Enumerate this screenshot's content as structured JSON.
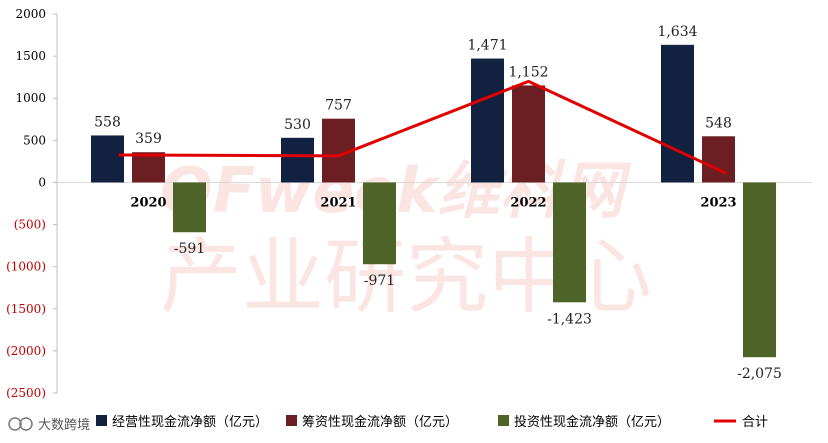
{
  "chart_data": {
    "type": "bar",
    "categories": [
      "2020",
      "2021",
      "2022",
      "2023"
    ],
    "series": [
      {
        "name": "经营性现金流净额（亿元）",
        "color": "#12213f",
        "values": [
          558,
          530,
          1471,
          1634
        ],
        "labels": [
          "558",
          "530",
          "1,471",
          "1,634"
        ]
      },
      {
        "name": "筹资性现金流净额（亿元）",
        "color": "#6b1f22",
        "values": [
          359,
          757,
          1152,
          548
        ],
        "labels": [
          "359",
          "757",
          "1,152",
          "548"
        ]
      },
      {
        "name": "投资性现金流净额（亿元）",
        "color": "#4e6328",
        "values": [
          -591,
          -971,
          -1423,
          -2075
        ],
        "labels": [
          "-591",
          "-971",
          "-1,423",
          "-2,075"
        ]
      }
    ],
    "line_series": {
      "name": "合计",
      "color": "#e00000",
      "values": [
        326,
        316,
        1200,
        107
      ]
    },
    "yticks": [
      {
        "value": 2000,
        "label": "2000"
      },
      {
        "value": 1500,
        "label": "1500"
      },
      {
        "value": 1000,
        "label": "1000"
      },
      {
        "value": 500,
        "label": "500"
      },
      {
        "value": 0,
        "label": "0"
      },
      {
        "value": -500,
        "label": "(500)"
      },
      {
        "value": -1000,
        "label": "(1000)"
      },
      {
        "value": -1500,
        "label": "(1500)"
      },
      {
        "value": -2000,
        "label": "(2000)"
      },
      {
        "value": -2500,
        "label": "(2500)"
      }
    ],
    "ylim": [
      -2500,
      2000
    ],
    "grid": false,
    "legend_position": "bottom"
  },
  "watermark": {
    "line1": "OFweek维科网",
    "line2": "产业研究中心"
  },
  "corner_brand": "大数跨境"
}
